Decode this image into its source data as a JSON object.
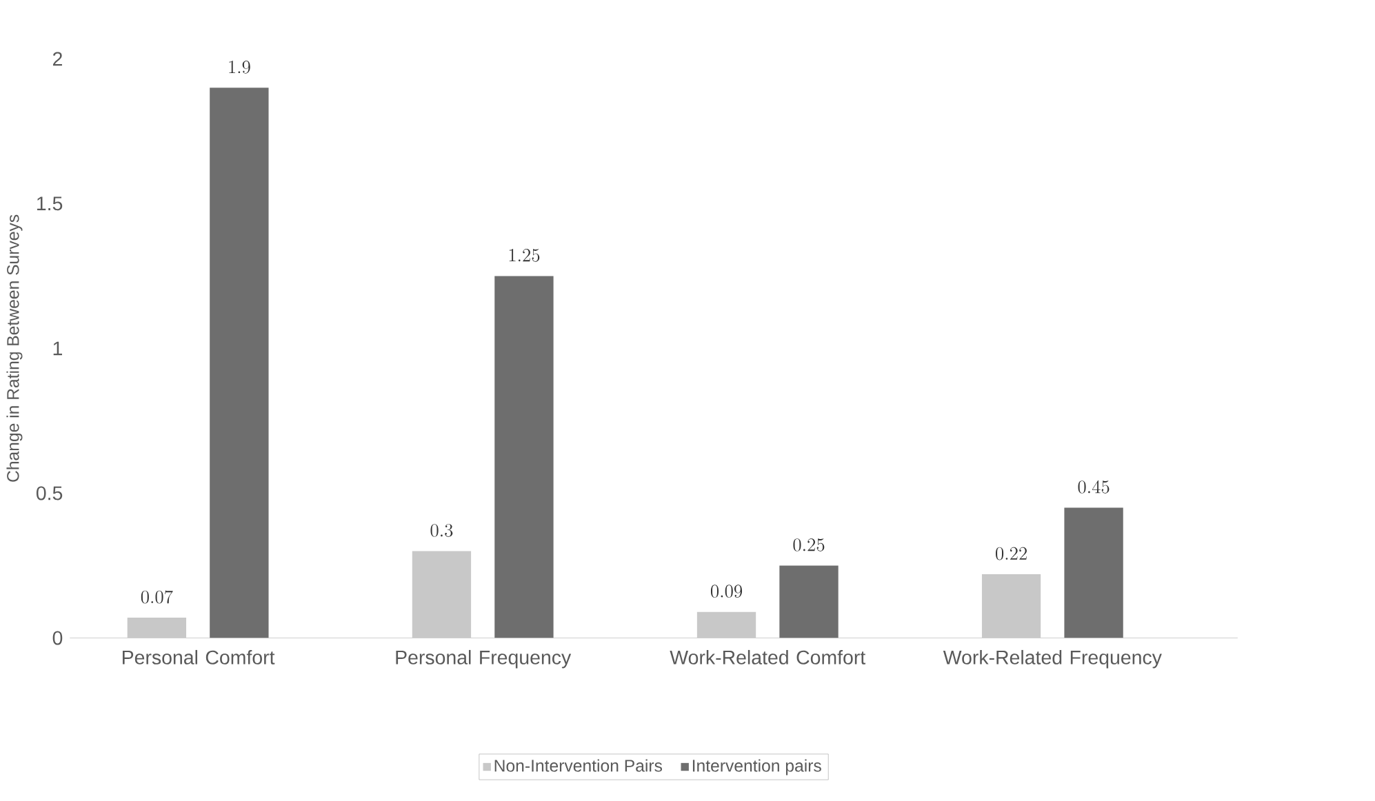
{
  "chart_data": {
    "type": "bar",
    "ylabel": "Change in Rating Between Surveys",
    "categories": [
      "Personal Comfort",
      "Personal Frequency",
      "Work-Related Comfort",
      "Work-Related Frequency"
    ],
    "series": [
      {
        "name": "Non-Intervention Pairs",
        "color": "#c8c8c8",
        "values": [
          0.07,
          0.3,
          0.09,
          0.22
        ]
      },
      {
        "name": "Intervention pairs",
        "color": "#6e6e6e",
        "values": [
          1.9,
          1.25,
          0.25,
          0.45
        ]
      }
    ],
    "ylim": [
      0,
      2
    ],
    "yticks": [
      0,
      0.5,
      1,
      1.5,
      2
    ],
    "data_labels": true,
    "grid": false,
    "legend": "bottom"
  }
}
